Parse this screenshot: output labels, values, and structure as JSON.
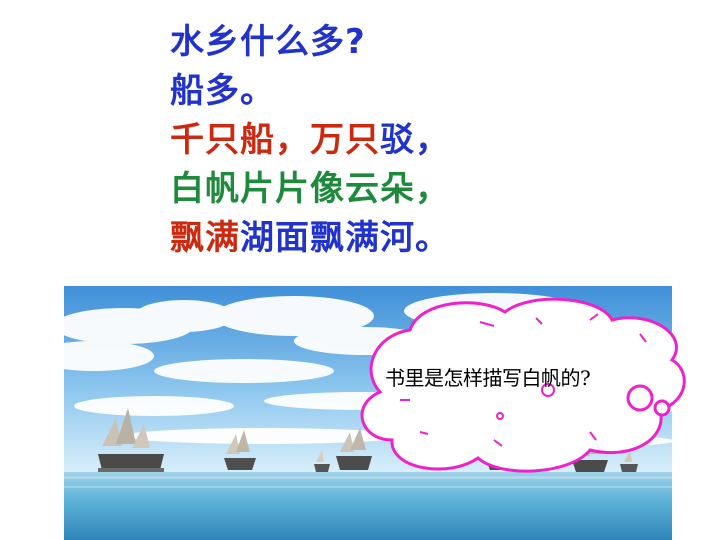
{
  "poem": {
    "lines": [
      {
        "segments": [
          {
            "text": "水乡什么多?",
            "color": "#2233cc"
          }
        ]
      },
      {
        "segments": [
          {
            "text": "船多。",
            "color": "#2233cc"
          }
        ]
      },
      {
        "segments": [
          {
            "text": "千只船，万只",
            "color": "#cc2a10"
          },
          {
            "text": "驳，",
            "color": "#2233cc"
          }
        ]
      },
      {
        "segments": [
          {
            "text": "白帆片片像云朵，",
            "color": "#1e8a3c"
          }
        ]
      },
      {
        "segments": [
          {
            "text": "飘满",
            "color": "#cc2a10"
          },
          {
            "text": "湖面飘满河。",
            "color": "#2233cc"
          }
        ]
      }
    ]
  },
  "thought_bubble": {
    "text": "书里是怎样描写白帆的?",
    "outline_color": "#ee22cc"
  },
  "photo": {
    "subject": "sailboats-on-lake"
  }
}
